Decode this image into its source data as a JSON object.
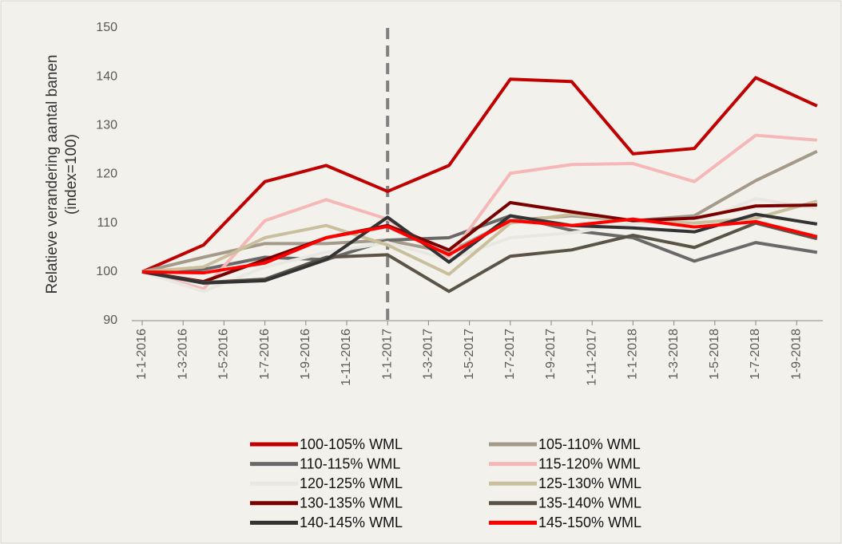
{
  "chart_data": {
    "type": "line",
    "ylabel": [
      "Relatieve verandering aantal banen",
      "(index=100)"
    ],
    "categories": [
      "1-1-2016",
      "1-3-2016",
      "1-5-2016",
      "1-7-2016",
      "1-9-2016",
      "1-11-2016",
      "1-1-2017",
      "1-3-2017",
      "1-5-2017",
      "1-7-2017",
      "1-9-2017",
      "1-11-2017",
      "1-1-2018",
      "1-3-2018",
      "1-5-2018",
      "1-7-2018",
      "1-9-2018"
    ],
    "x": [
      "1-1-2016",
      "1-4-2016",
      "1-7-2016",
      "1-10-2016",
      "1-1-2017",
      "1-4-2017",
      "1-7-2017",
      "1-10-2017",
      "1-1-2018",
      "1-4-2018",
      "1-7-2018",
      "1-10-2018"
    ],
    "ylim": [
      90,
      150
    ],
    "yticks": [
      90,
      100,
      110,
      120,
      130,
      140,
      150
    ],
    "vline": {
      "x": "1-1-2017",
      "color": "#808080"
    },
    "series": [
      {
        "name": "100-105% WML",
        "color": "#c00000",
        "values": [
          100,
          105.5,
          118.5,
          121.8,
          116.5,
          121.8,
          139.5,
          139,
          124.2,
          125.3,
          139.8,
          134
        ]
      },
      {
        "name": "105-110% WML",
        "color": "#a39a8a",
        "values": [
          100,
          103,
          105.8,
          105.8,
          106.5,
          104,
          110.5,
          111.5,
          110.5,
          111.5,
          118.7,
          124.7
        ]
      },
      {
        "name": "110-115% WML",
        "color": "#696969",
        "values": [
          100,
          100.5,
          103,
          102.5,
          106.5,
          107,
          111.5,
          108.5,
          107,
          102.2,
          106,
          104
        ]
      },
      {
        "name": "115-120% WML",
        "color": "#f5b7b7",
        "values": [
          100,
          96.5,
          110.5,
          114.8,
          110.8,
          103,
          120.2,
          122,
          122.2,
          118.5,
          128,
          127
        ]
      },
      {
        "name": "120-125% WML",
        "color": "#e9e7e2",
        "values": [
          100,
          96,
          101,
          104,
          106,
          102.5,
          107,
          108,
          110,
          110,
          115,
          113
        ]
      },
      {
        "name": "125-130% WML",
        "color": "#c9bf9d",
        "values": [
          100,
          101,
          107,
          109.5,
          105.5,
          99.5,
          110,
          111.8,
          110.5,
          110,
          111,
          114.5
        ]
      },
      {
        "name": "130-135% WML",
        "color": "#7a0000",
        "values": [
          100,
          98,
          102.5,
          107,
          109.5,
          104.5,
          114.2,
          112.3,
          110.5,
          111,
          113.5,
          113.7
        ]
      },
      {
        "name": "135-140% WML",
        "color": "#5b5347",
        "values": [
          100,
          97.8,
          98.5,
          103,
          103.5,
          96,
          103.2,
          104.5,
          107.5,
          105,
          110,
          106.8
        ]
      },
      {
        "name": "140-145% WML",
        "color": "#333333",
        "values": [
          100,
          97.7,
          98.2,
          102.5,
          111.2,
          102,
          111.5,
          109.5,
          109,
          108.2,
          111.8,
          109.8
        ]
      },
      {
        "name": "145-150% WML",
        "color": "#ff0000",
        "values": [
          100,
          99.8,
          101.8,
          107,
          109.3,
          103.5,
          110.5,
          109.5,
          110.8,
          109.2,
          110.3,
          107.2
        ]
      }
    ]
  }
}
